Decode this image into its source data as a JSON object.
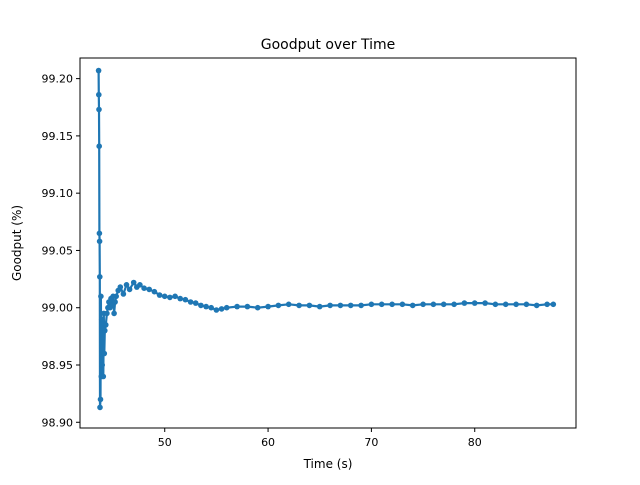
{
  "chart_data": {
    "type": "line",
    "title": "Goodput over Time",
    "xlabel": "Time (s)",
    "ylabel": "Goodput (%)",
    "xlim": [
      41.8,
      89.8
    ],
    "ylim": [
      98.895,
      99.218
    ],
    "xticks": [
      50,
      60,
      70,
      80
    ],
    "yticks": [
      98.9,
      98.95,
      99.0,
      99.05,
      99.1,
      99.15,
      99.2
    ],
    "grid": false,
    "series": [
      {
        "color": "#1f77b4",
        "marker": "circle",
        "x": [
          43.6,
          43.62,
          43.64,
          43.66,
          43.68,
          43.7,
          43.72,
          43.74,
          43.78,
          43.82,
          43.86,
          43.9,
          43.95,
          44.0,
          44.05,
          44.1,
          44.15,
          44.2,
          44.3,
          44.4,
          44.5,
          44.6,
          44.7,
          44.8,
          44.9,
          45.0,
          45.1,
          45.2,
          45.3,
          45.5,
          45.7,
          46.0,
          46.3,
          46.6,
          47.0,
          47.3,
          47.6,
          48.0,
          48.5,
          49.0,
          49.5,
          50.0,
          50.5,
          51.0,
          51.5,
          52.0,
          52.5,
          53.0,
          53.5,
          54.0,
          54.5,
          55.0,
          55.5,
          56.0,
          57.0,
          58.0,
          59.0,
          60.0,
          61.0,
          62.0,
          63.0,
          64.0,
          65.0,
          66.0,
          67.0,
          68.0,
          69.0,
          70.0,
          71.0,
          72.0,
          73.0,
          74.0,
          75.0,
          76.0,
          77.0,
          78.0,
          79.0,
          80.0,
          81.0,
          82.0,
          83.0,
          84.0,
          85.0,
          86.0,
          87.0,
          87.6
        ],
        "y": [
          99.207,
          99.186,
          99.173,
          99.141,
          99.065,
          99.058,
          99.027,
          98.913,
          98.92,
          99.01,
          98.94,
          98.99,
          98.95,
          98.97,
          98.94,
          98.995,
          98.96,
          98.98,
          98.985,
          98.995,
          99.0,
          99.005,
          99.0,
          99.008,
          99.002,
          99.01,
          98.995,
          99.005,
          99.01,
          99.015,
          99.018,
          99.012,
          99.02,
          99.016,
          99.022,
          99.018,
          99.02,
          99.017,
          99.016,
          99.014,
          99.011,
          99.01,
          99.009,
          99.01,
          99.008,
          99.007,
          99.005,
          99.004,
          99.002,
          99.001,
          99.0,
          98.998,
          98.999,
          99.0,
          99.001,
          99.001,
          99.0,
          99.001,
          99.002,
          99.003,
          99.002,
          99.002,
          99.001,
          99.002,
          99.002,
          99.002,
          99.002,
          99.003,
          99.003,
          99.003,
          99.003,
          99.002,
          99.003,
          99.003,
          99.003,
          99.003,
          99.004,
          99.004,
          99.004,
          99.003,
          99.003,
          99.003,
          99.003,
          99.002,
          99.003,
          99.003
        ]
      }
    ]
  }
}
